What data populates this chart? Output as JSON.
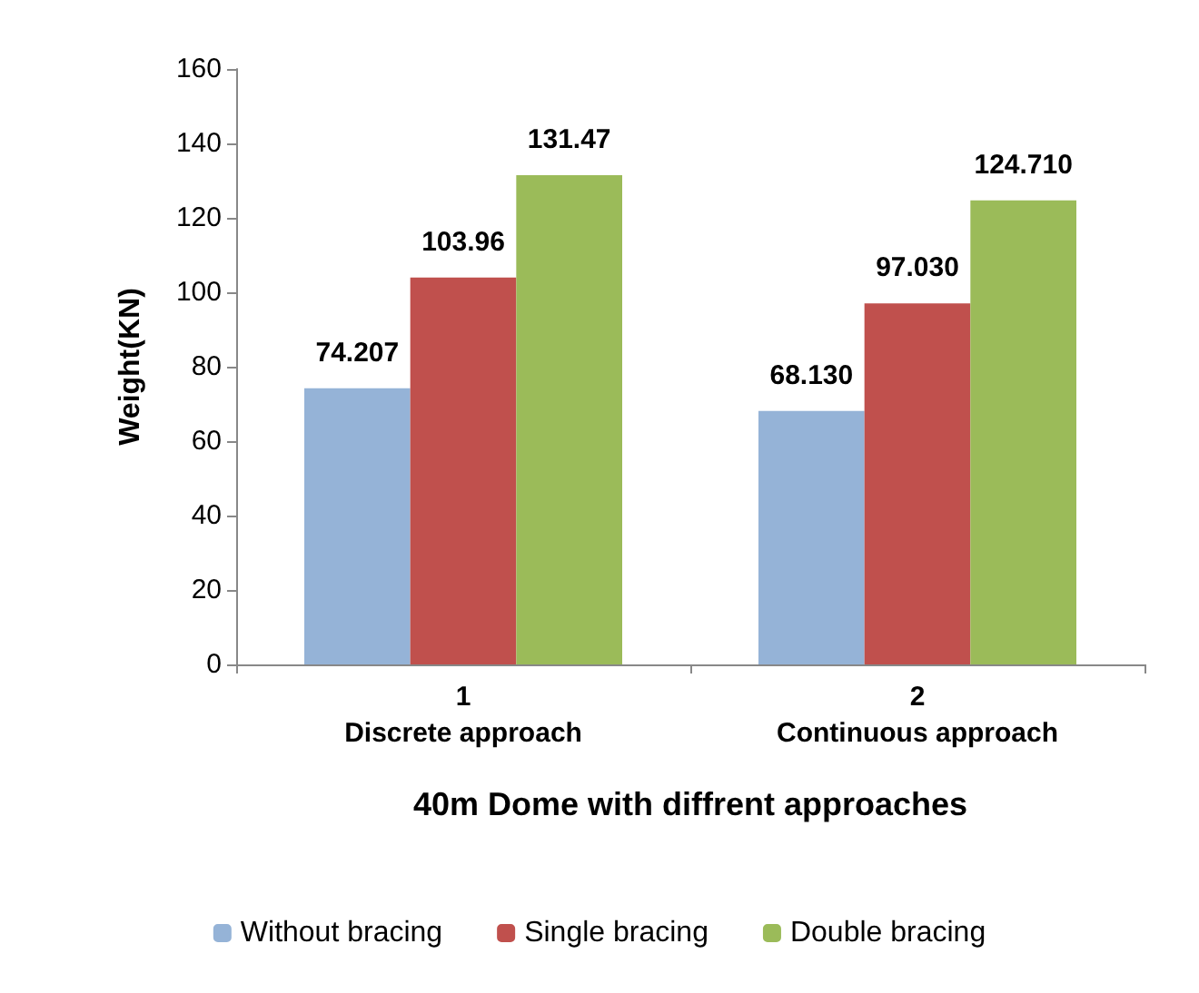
{
  "chart_data": {
    "type": "bar",
    "xlabel": "40m Dome with diffrent approaches",
    "ylabel": "Weight(KN)",
    "categories": [
      "1\nDiscrete approach",
      "2\nContinuous approach"
    ],
    "series": [
      {
        "name": "Without bracing",
        "color": "#95b3d7",
        "values": [
          74.207,
          68.13
        ],
        "value_labels": [
          "74.207",
          "68.130"
        ]
      },
      {
        "name": "Single bracing",
        "color": "#c0504d",
        "values": [
          103.96,
          97.03
        ],
        "value_labels": [
          "103.96",
          "97.030"
        ]
      },
      {
        "name": "Double bracing",
        "color": "#9bbb59",
        "values": [
          131.47,
          124.71
        ],
        "value_labels": [
          "131.47",
          "124.710"
        ]
      }
    ],
    "ylim": [
      0,
      160
    ],
    "yticks": [
      0,
      20,
      40,
      60,
      80,
      100,
      120,
      140,
      160
    ],
    "grid": false,
    "legend": "bottom"
  }
}
